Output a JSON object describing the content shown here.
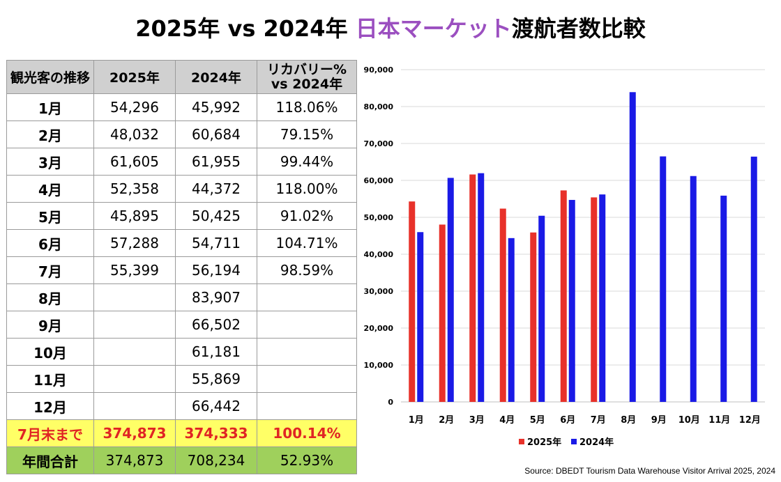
{
  "title": {
    "prefix": "2025年 vs 2024年 ",
    "accent": "日本マーケット",
    "suffix": "渡航者数比較",
    "accent_color": "#9b4fc0"
  },
  "table": {
    "headers": [
      "観光客の推移",
      "2025年",
      "2024年",
      "リカバリー% vs 2024年"
    ],
    "rows": [
      [
        "1月",
        "54,296",
        "45,992",
        "118.06%"
      ],
      [
        "2月",
        "48,032",
        "60,684",
        "79.15%"
      ],
      [
        "3月",
        "61,605",
        "61,955",
        "99.44%"
      ],
      [
        "4月",
        "52,358",
        "44,372",
        "118.00%"
      ],
      [
        "5月",
        "45,895",
        "50,425",
        "91.02%"
      ],
      [
        "6月",
        "57,288",
        "54,711",
        "104.71%"
      ],
      [
        "7月",
        "55,399",
        "56,194",
        "98.59%"
      ],
      [
        "8月",
        "",
        "83,907",
        ""
      ],
      [
        "9月",
        "",
        "66,502",
        ""
      ],
      [
        "10月",
        "",
        "61,181",
        ""
      ],
      [
        "11月",
        "",
        "55,869",
        ""
      ],
      [
        "12月",
        "",
        "66,442",
        ""
      ]
    ],
    "ytd_row": [
      "7月末まで",
      "374,873",
      "374,333",
      "100.14%"
    ],
    "total_row": [
      "年間合計",
      "374,873",
      "708,234",
      "52.93%"
    ],
    "ytd_color": "#ffff66",
    "total_color": "#9fd05c"
  },
  "chart_data": {
    "type": "bar",
    "categories": [
      "1月",
      "2月",
      "3月",
      "4月",
      "5月",
      "6月",
      "7月",
      "8月",
      "9月",
      "10月",
      "11月",
      "12月"
    ],
    "series": [
      {
        "name": "2025年",
        "color": "#e8312a",
        "values": [
          54296,
          48032,
          61605,
          52358,
          45895,
          57288,
          55399,
          null,
          null,
          null,
          null,
          null
        ]
      },
      {
        "name": "2024年",
        "color": "#1a1ae6",
        "values": [
          45992,
          60684,
          61955,
          44372,
          50425,
          54711,
          56194,
          83907,
          66502,
          61181,
          55869,
          66442
        ]
      }
    ],
    "yticks": [
      "0",
      "10,000",
      "20,000",
      "30,000",
      "40,000",
      "50,000",
      "60,000",
      "70,000",
      "80,000",
      "90,000"
    ],
    "ylim": [
      0,
      90000
    ],
    "grid": true,
    "legend": "bottom"
  },
  "source": "Source: DBEDT Tourism Data Warehouse Visitor Arrival 2025, 2024"
}
